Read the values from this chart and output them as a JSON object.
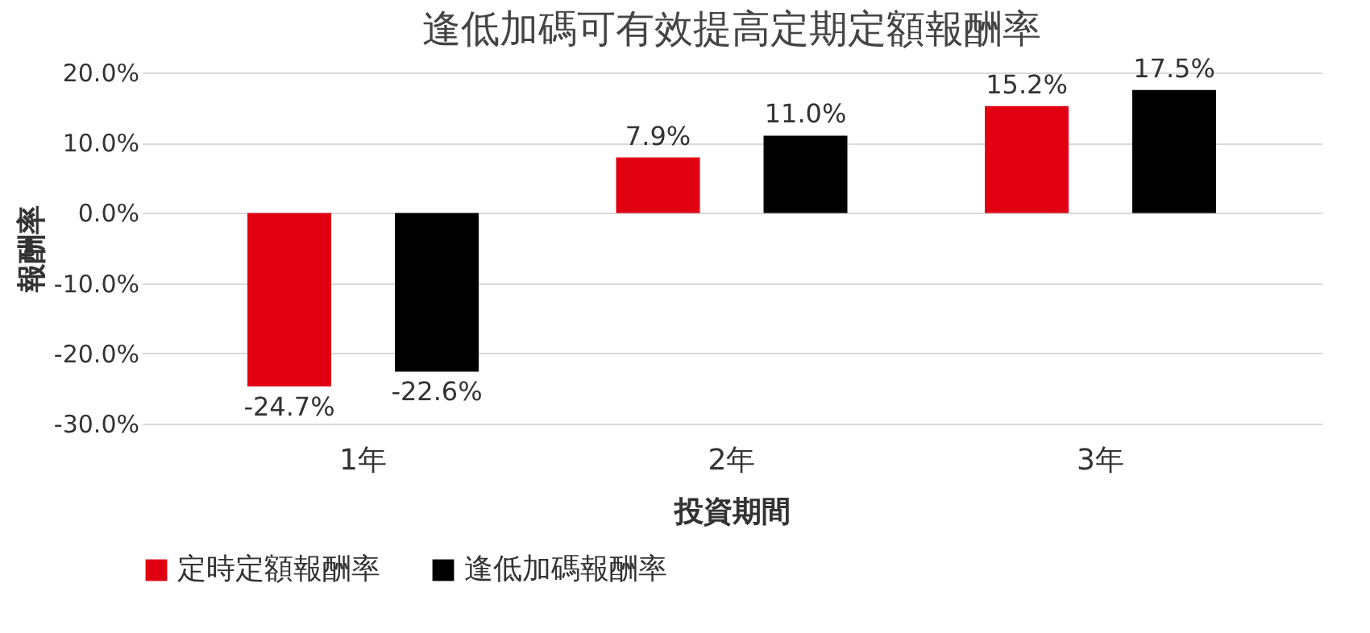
{
  "chart_data": {
    "type": "bar",
    "title": "逢低加碼可有效提高定期定額報酬率",
    "xlabel": "投資期間",
    "ylabel": "報酬率",
    "categories": [
      "1年",
      "2年",
      "3年"
    ],
    "series": [
      {
        "name": "定時定額報酬率",
        "color": "#e00012",
        "values": [
          -24.7,
          7.9,
          15.2
        ],
        "value_labels": [
          "-24.7%",
          "7.9%",
          "15.2%"
        ]
      },
      {
        "name": "逢低加碼報酬率",
        "color": "#000000",
        "values": [
          -22.6,
          11.0,
          17.5
        ],
        "value_labels": [
          "-22.6%",
          "11.0%",
          "17.5%"
        ]
      }
    ],
    "ylim": [
      -30,
      20
    ],
    "yticks": [
      {
        "value": -30,
        "label": "-30.0%"
      },
      {
        "value": -20,
        "label": "-20.0%"
      },
      {
        "value": -10,
        "label": "-10.0%"
      },
      {
        "value": 0,
        "label": "0.0%"
      },
      {
        "value": 10,
        "label": "10.0%"
      },
      {
        "value": 20,
        "label": "20.0%"
      }
    ],
    "grid": "y",
    "legend": "bottom"
  }
}
